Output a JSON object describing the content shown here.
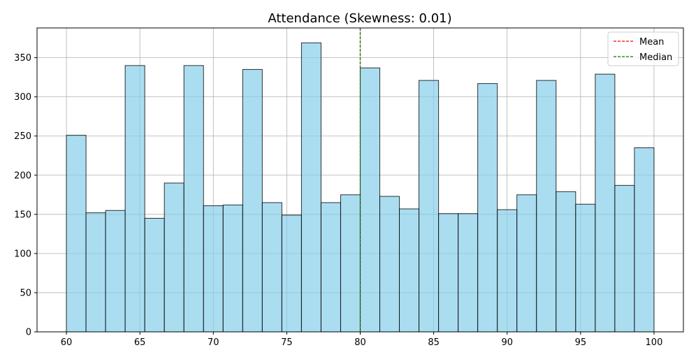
{
  "chart_data": {
    "type": "bar",
    "title": "Attendance (Skewness: 0.01)",
    "xlabel": "",
    "ylabel": "",
    "xlim": [
      58,
      102
    ],
    "ylim": [
      0,
      388
    ],
    "bin_start": 60,
    "bin_width": 1.3333,
    "values": [
      251,
      152,
      155,
      340,
      145,
      190,
      340,
      161,
      162,
      335,
      165,
      149,
      369,
      165,
      175,
      337,
      173,
      157,
      321,
      151,
      151,
      317,
      156,
      175,
      321,
      179,
      163,
      329,
      187,
      235
    ],
    "x_ticks": [
      60,
      65,
      70,
      75,
      80,
      85,
      90,
      95,
      100
    ],
    "y_ticks": [
      0,
      50,
      100,
      150,
      200,
      250,
      300,
      350
    ],
    "bar_color": "#87ceeb",
    "bar_edge_color": "#000000",
    "grid": true,
    "mean": 80,
    "median": 80,
    "mean_color": "#ff0000",
    "median_color": "#008000",
    "legend": {
      "position": "top-right",
      "entries": [
        {
          "label": "Mean",
          "color": "#ff0000"
        },
        {
          "label": "Median",
          "color": "#008000"
        }
      ]
    }
  }
}
